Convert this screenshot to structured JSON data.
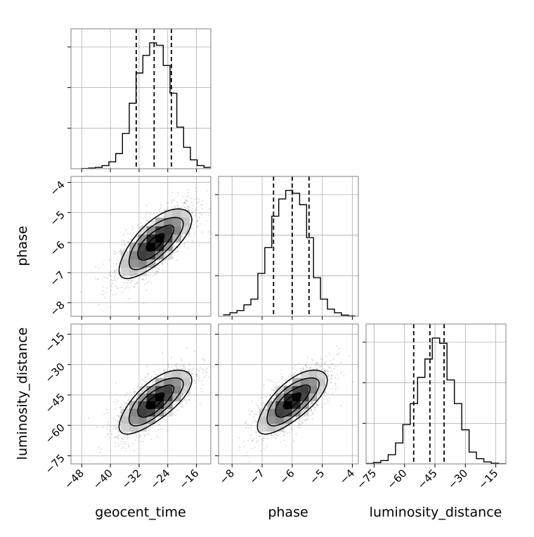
{
  "chart_data": {
    "type": "corner",
    "parameters": [
      "geocent_time",
      "phase",
      "luminosity_distance"
    ],
    "axis_labels": {
      "geocent_time": "geocent_time",
      "phase": "phase",
      "luminosity_distance": "luminosity_distance"
    },
    "ranges": {
      "geocent_time": [
        -51,
        -12
      ],
      "phase": [
        -8.45,
        -3.8
      ],
      "luminosity_distance": [
        -79,
        -10
      ]
    },
    "ticks": {
      "geocent_time": [
        -48,
        -40,
        -32,
        -24,
        -16
      ],
      "phase": [
        -8,
        -7,
        -6,
        -5,
        -4
      ],
      "luminosity_distance": [
        -75,
        -60,
        -45,
        -30,
        -15
      ]
    },
    "tick_labels": {
      "geocent_time": [
        "−48",
        "−40",
        "−32",
        "−24",
        "−16"
      ],
      "phase": [
        "−8",
        "−7",
        "−6",
        "−5",
        "−4"
      ],
      "luminosity_distance": [
        "−75",
        "−60",
        "−45",
        "−30",
        "−15"
      ]
    },
    "quantiles": {
      "geocent_time": [
        -32.8,
        -27.8,
        -23.0
      ],
      "phase": [
        -6.62,
        -6.0,
        -5.44
      ],
      "luminosity_distance": [
        -55.5,
        -47.5,
        -40.5
      ]
    },
    "means": {
      "geocent_time": -27.5,
      "phase": -6.0,
      "luminosity_distance": -48.0
    },
    "stds": {
      "geocent_time": 4.8,
      "phase": 0.55,
      "luminosity_distance": 7.5
    },
    "correlation": 0.72,
    "histograms": {
      "geocent_time": {
        "bin_range": [
          -48,
          -12
        ],
        "counts": [
          0.2,
          0.5,
          1.0,
          2.5,
          5.5,
          12,
          28,
          52,
          76,
          90,
          100,
          98,
          82,
          60,
          33,
          17,
          7,
          2.5,
          1.0
        ]
      },
      "phase": {
        "bin_range": [
          -8.3,
          -3.9
        ],
        "counts": [
          1.0,
          2.5,
          4.0,
          8.0,
          12,
          30,
          48,
          70,
          82,
          88,
          86,
          78,
          55,
          27,
          12,
          5.0,
          2.5,
          0.8,
          0.3
        ]
      },
      "luminosity_distance": {
        "bin_range": [
          -79,
          -10
        ],
        "counts": [
          0.3,
          1.0,
          2.5,
          7.0,
          16,
          30,
          46,
          66,
          80,
          96,
          92,
          64,
          46,
          26,
          9.0,
          4.0,
          1.5,
          0.5,
          0.1
        ]
      }
    },
    "contour_levels_sigma": [
      0.5,
      1.0,
      1.5,
      2.0
    ],
    "grid": true
  },
  "colors": {
    "contour": "#000000",
    "points": "#808080",
    "grid": "#b0b0b0",
    "frame": "#808080"
  }
}
